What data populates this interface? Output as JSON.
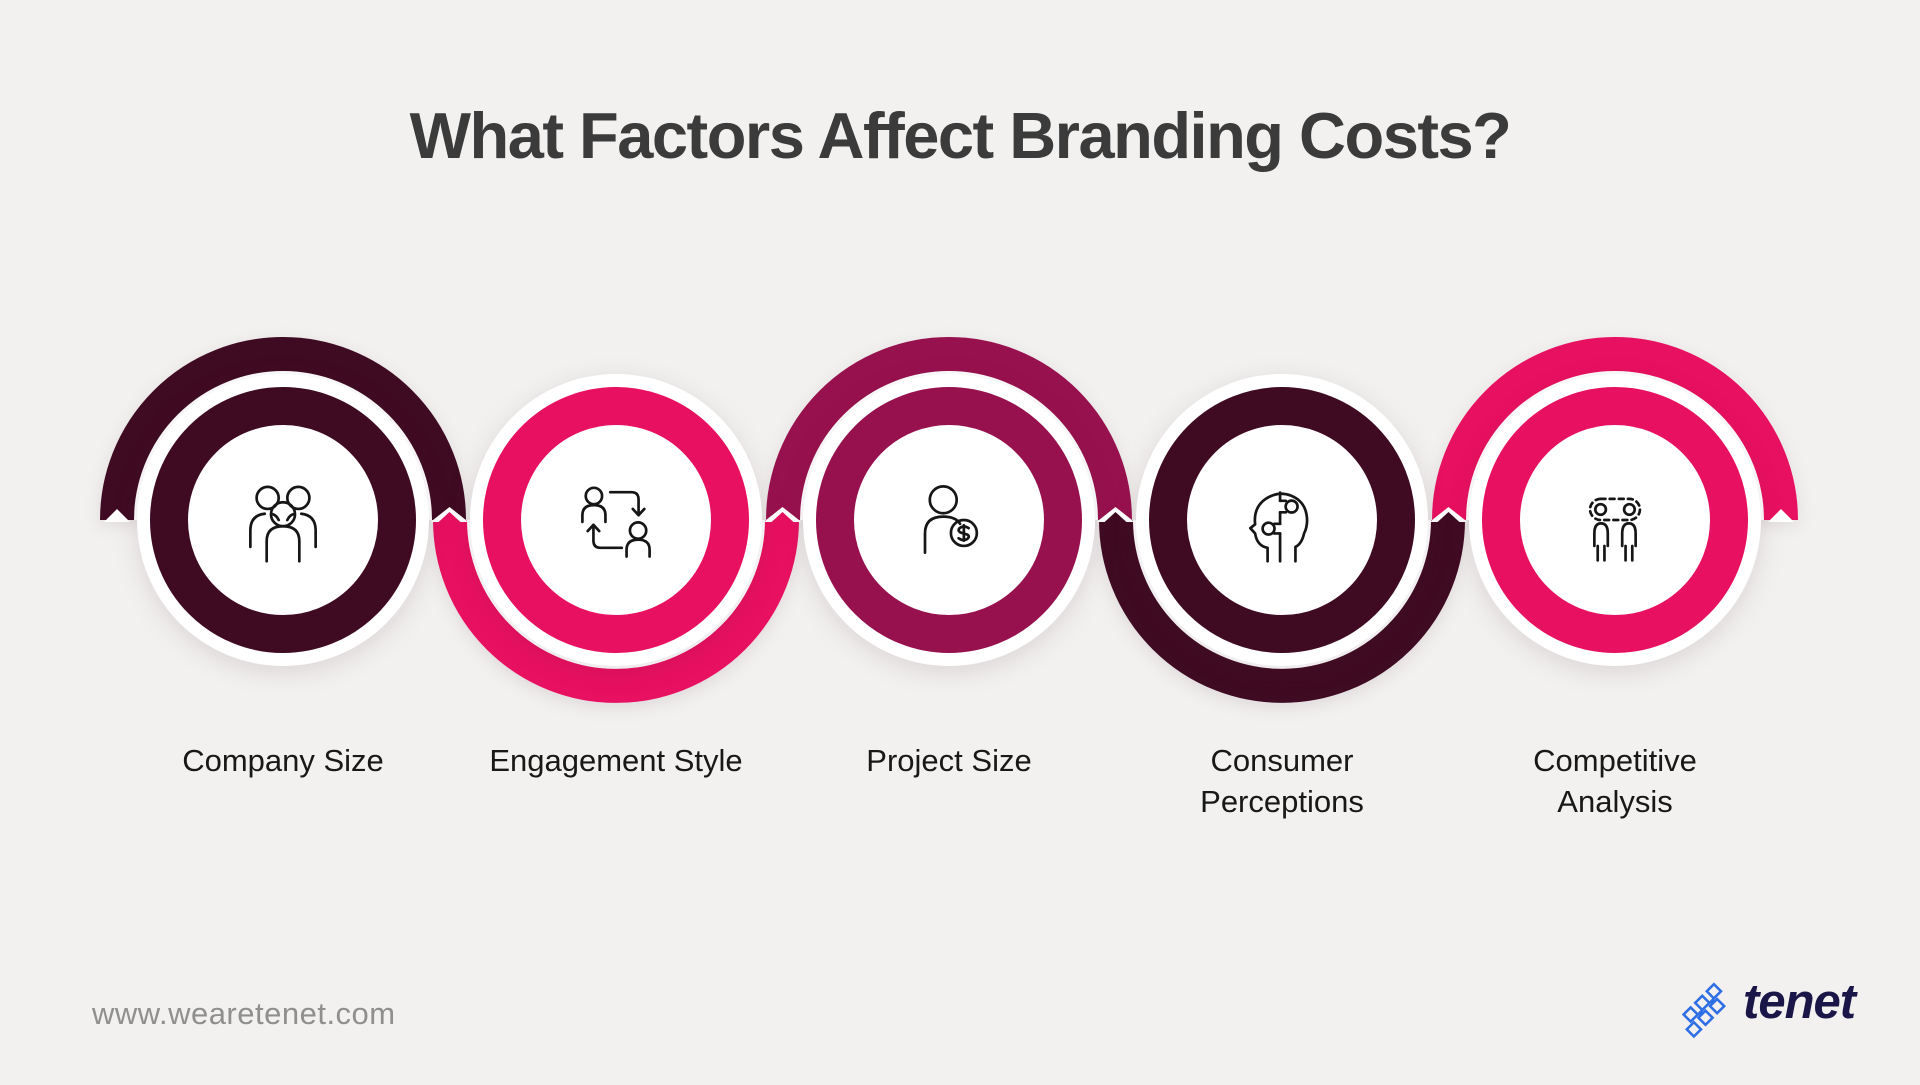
{
  "page": {
    "background_color": "#f2f1ef"
  },
  "title": {
    "text": "What Factors Affect Branding Costs?",
    "color": "#3b3b3b"
  },
  "diagram": {
    "ribbon_colors": {
      "dark_maroon": "#3f0b22",
      "pink": "#e81060",
      "wine": "#97114e"
    },
    "factors": [
      {
        "label": "Company Size",
        "icon": "people-group-icon",
        "color": "#3f0b22",
        "arc": "top"
      },
      {
        "label": "Engagement Style",
        "icon": "people-exchange-icon",
        "color": "#e81060",
        "arc": "bottom"
      },
      {
        "label": "Project Size",
        "icon": "person-dollar-icon",
        "color": "#97114e",
        "arc": "top"
      },
      {
        "label": "Consumer Perceptions",
        "icon": "head-puzzle-icon",
        "color": "#3f0b22",
        "arc": "bottom"
      },
      {
        "label": "Competitive Analysis",
        "icon": "people-compare-icon",
        "color": "#e81060",
        "arc": "top"
      }
    ]
  },
  "footer": {
    "website": "www.wearetenet.com",
    "website_color": "#8f8f8f",
    "logo": {
      "text": "tenet",
      "text_color": "#1a1648",
      "icon": "tenet-mark-icon",
      "icon_color": "#2f6fe6"
    }
  }
}
